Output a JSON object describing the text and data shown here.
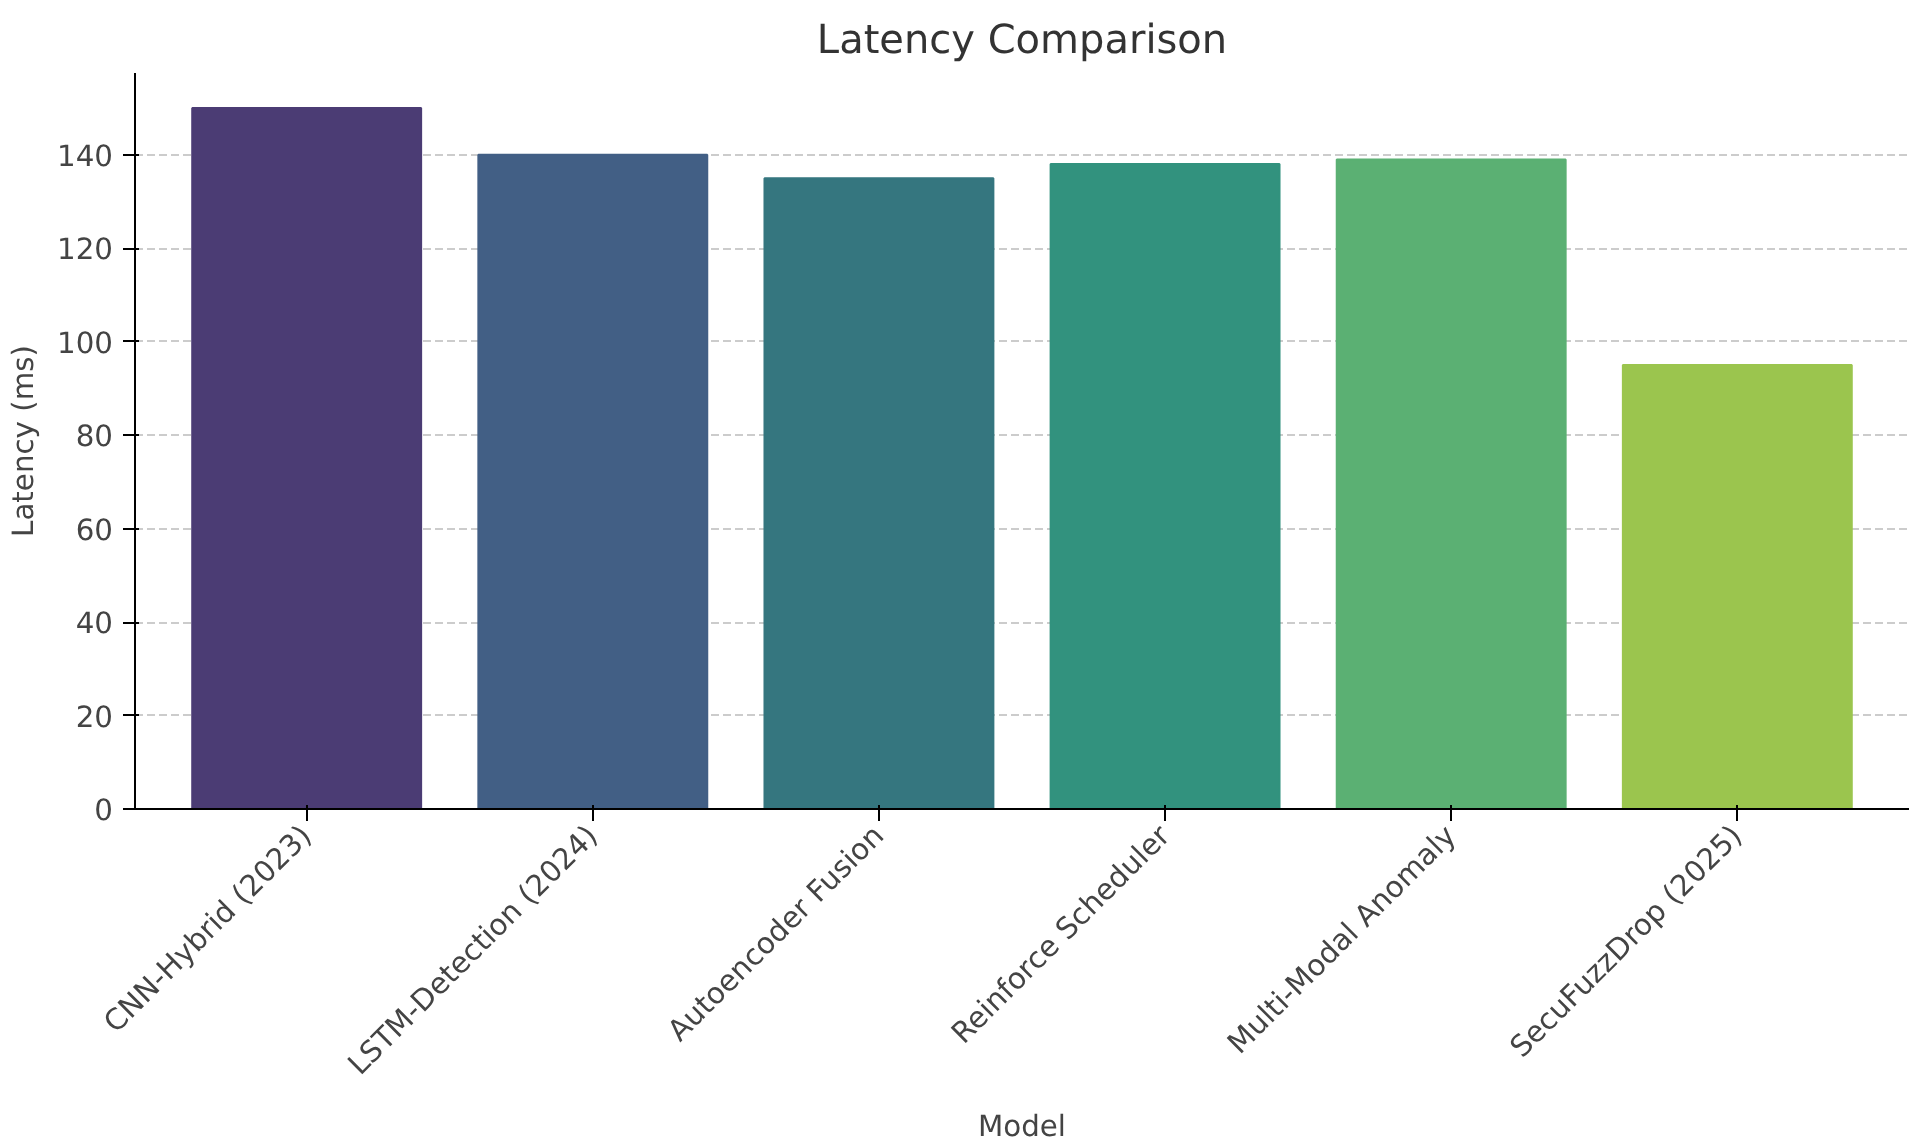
{
  "chart_data": {
    "type": "bar",
    "title": "Latency Comparison",
    "xlabel": "Model",
    "ylabel": "Latency (ms)",
    "categories": [
      "CNN-Hybrid (2023)",
      "LSTM-Detection (2024)",
      "Autoencoder Fusion",
      "Reinforce Scheduler",
      "Multi-Modal Anomaly",
      "SecuFuzzDrop (2025)"
    ],
    "values": [
      150,
      140,
      135,
      138,
      139,
      95
    ],
    "colors": [
      "#4b3c74",
      "#425f85",
      "#35767f",
      "#32927e",
      "#5bb073",
      "#9bc54e"
    ],
    "ylim": [
      0,
      157.5
    ],
    "yticks": [
      0,
      20,
      40,
      60,
      80,
      100,
      120,
      140
    ],
    "grid": "y"
  }
}
